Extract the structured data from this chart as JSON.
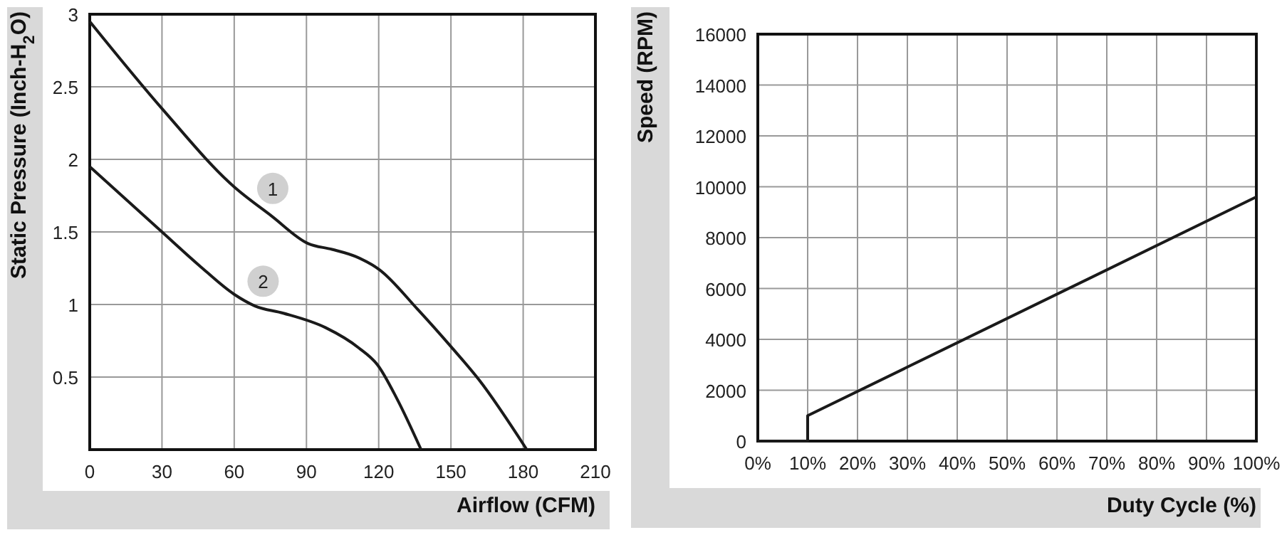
{
  "chart_data": [
    {
      "type": "line",
      "xlabel": "Airflow (CFM)",
      "ylabel": "Static Pressure (Inch-H$_{2}$O)",
      "xlim": [
        0,
        210
      ],
      "ylim": [
        0,
        3
      ],
      "xticks": [
        0,
        30,
        60,
        90,
        120,
        150,
        180,
        210
      ],
      "yticks": [
        0.5,
        1,
        1.5,
        2,
        2.5,
        3
      ],
      "grid": true,
      "marker": "none",
      "line_style": "solid",
      "series": [
        {
          "color": "#1a1a1a",
          "x": [
            0,
            30,
            60,
            75.5,
            90.7,
            100.6,
            110.5,
            120.3,
            136,
            150,
            161.7,
            181.5
          ],
          "values": [
            2.95,
            2.35,
            1.81,
            1.61,
            1.42,
            1.38,
            1.33,
            1.24,
            0.97,
            0.71,
            0.48,
            0
          ]
        },
        {
          "color": "#1a1a1a",
          "x": [
            0,
            30,
            45.4,
            60,
            68.6,
            80.4,
            98,
            111.8,
            119.7,
            127.6,
            137.6
          ],
          "values": [
            1.95,
            1.5,
            1.27,
            1.07,
            0.99,
            0.94,
            0.84,
            0.7,
            0.58,
            0.35,
            0
          ]
        }
      ],
      "annotations": [
        {
          "text": "1",
          "x": 76,
          "y": 1.8
        },
        {
          "text": "2",
          "x": 72,
          "y": 1.16
        }
      ]
    },
    {
      "type": "line",
      "xlabel": "Duty Cycle (%)",
      "ylabel": "Speed (RPM)",
      "xlim": [
        0,
        100
      ],
      "ylim": [
        0,
        16000
      ],
      "xticks": [
        {
          "value": 0,
          "label": "0%"
        },
        {
          "value": 10,
          "label": "10%"
        },
        {
          "value": 20,
          "label": "20%"
        },
        {
          "value": 30,
          "label": "30%"
        },
        {
          "value": 40,
          "label": "40%"
        },
        {
          "value": 50,
          "label": "50%"
        },
        {
          "value": 60,
          "label": "60%"
        },
        {
          "value": 70,
          "label": "70%"
        },
        {
          "value": 80,
          "label": "80%"
        },
        {
          "value": 90,
          "label": "90%"
        },
        {
          "value": 100,
          "label": "100%"
        }
      ],
      "yticks": [
        0,
        2000,
        4000,
        6000,
        8000,
        10000,
        12000,
        14000,
        16000
      ],
      "grid": true,
      "marker": "none",
      "line_style": "solid",
      "series": [
        {
          "color": "#1a1a1a",
          "x": [
            0,
            10,
            10,
            100
          ],
          "values": [
            0,
            0,
            1000,
            9600
          ]
        }
      ]
    }
  ]
}
